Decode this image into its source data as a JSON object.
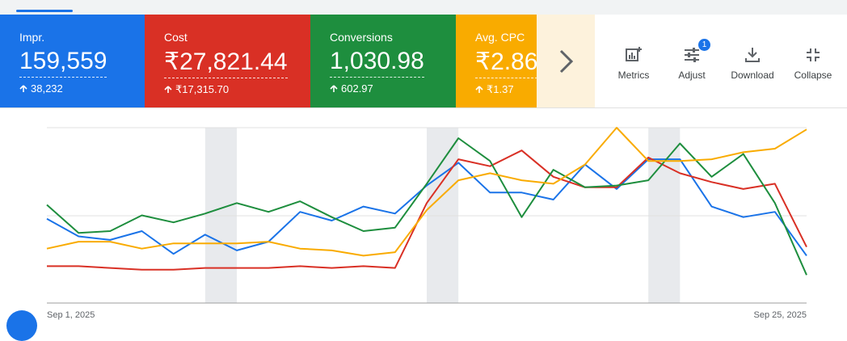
{
  "cards": [
    {
      "label": "Impr.",
      "value": "159,559",
      "delta": "38,232",
      "color": "#1a73e8"
    },
    {
      "label": "Cost",
      "value": "₹27,821.44",
      "delta": "₹17,315.70",
      "color": "#d93025"
    },
    {
      "label": "Conversions",
      "value": "1,030.98",
      "delta": "602.97",
      "color": "#1e8e3e"
    },
    {
      "label": "Avg. CPC",
      "value": "₹2.86",
      "delta": "₹1.37",
      "color": "#f9ab00"
    }
  ],
  "toolbar": {
    "metrics_label": "Metrics",
    "adjust_label": "Adjust",
    "adjust_badge": "1",
    "download_label": "Download",
    "collapse_label": "Collapse"
  },
  "icons": {
    "next": "chevron-right-icon",
    "metrics": "metrics-icon",
    "adjust": "tune-icon",
    "download": "download-icon",
    "collapse": "collapse-icon",
    "delta": "arrow-up-icon"
  },
  "chart_data": {
    "type": "line",
    "x": [
      "Sep 1, 2025",
      "Sep 2, 2025",
      "Sep 3, 2025",
      "Sep 4, 2025",
      "Sep 5, 2025",
      "Sep 6, 2025",
      "Sep 7, 2025",
      "Sep 8, 2025",
      "Sep 9, 2025",
      "Sep 10, 2025",
      "Sep 11, 2025",
      "Sep 12, 2025",
      "Sep 13, 2025",
      "Sep 14, 2025",
      "Sep 15, 2025",
      "Sep 16, 2025",
      "Sep 17, 2025",
      "Sep 18, 2025",
      "Sep 19, 2025",
      "Sep 20, 2025",
      "Sep 21, 2025",
      "Sep 22, 2025",
      "Sep 23, 2025",
      "Sep 24, 2025",
      "Sep 25, 2025"
    ],
    "x_tick_labels": [
      "Sep 1, 2025",
      "Sep 25, 2025"
    ],
    "ylim": [
      0,
      100
    ],
    "grid": true,
    "highlight_bands": [
      [
        "Sep 6, 2025",
        "Sep 7, 2025"
      ],
      [
        "Sep 13, 2025",
        "Sep 14, 2025"
      ],
      [
        "Sep 20, 2025",
        "Sep 21, 2025"
      ]
    ],
    "series": [
      {
        "color": "#1a73e8",
        "values": [
          48,
          38,
          36,
          41,
          28,
          39,
          30,
          35,
          52,
          47,
          55,
          51,
          67,
          80,
          63,
          63,
          59,
          79,
          65,
          82,
          82,
          55,
          49,
          52,
          27
        ]
      },
      {
        "color": "#d93025",
        "values": [
          21,
          21,
          20,
          19,
          19,
          20,
          20,
          20,
          21,
          20,
          21,
          20,
          57,
          82,
          78,
          87,
          72,
          66,
          66,
          83,
          74,
          69,
          65,
          68,
          32
        ]
      },
      {
        "color": "#1e8e3e",
        "values": [
          56,
          40,
          41,
          50,
          46,
          51,
          57,
          52,
          58,
          49,
          41,
          43,
          68,
          94,
          81,
          49,
          76,
          66,
          67,
          70,
          91,
          72,
          85,
          57,
          16
        ]
      },
      {
        "color": "#f9ab00",
        "values": [
          31,
          35,
          35,
          31,
          34,
          34,
          34,
          35,
          31,
          30,
          27,
          29,
          53,
          70,
          74,
          70,
          68,
          79,
          100,
          81,
          81,
          82,
          86,
          88,
          99
        ]
      }
    ]
  }
}
